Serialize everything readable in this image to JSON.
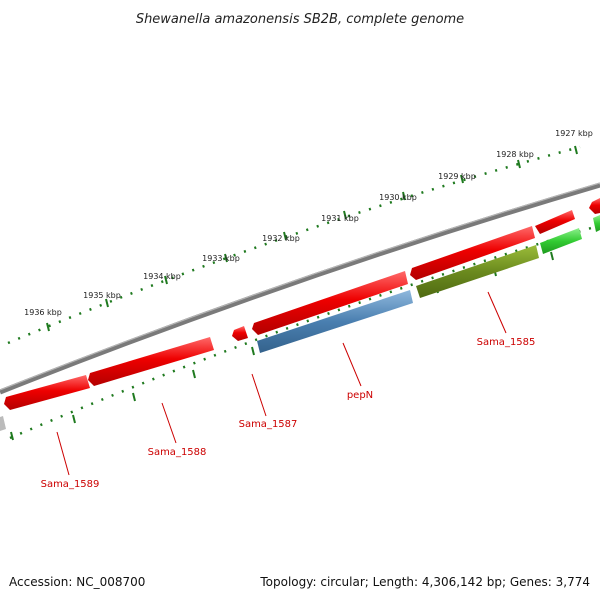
{
  "title": "Shewanella amazonensis SB2B, complete genome",
  "footer": {
    "accession": "Accession: NC_008700",
    "topology": "Topology: circular; Length: 4,306,142 bp; Genes: 3,774"
  },
  "colors": {
    "backbone": "#7a7a7a",
    "tick": "#1f7a1f",
    "gene_red": "#e60000",
    "gene_blue": "#4a7fb0",
    "gene_olive": "#6b8a1e",
    "gene_green": "#33cc33",
    "gene_gray": "#bbbbbb",
    "label_red": "#cc0000"
  },
  "ticks": [
    "1927 kbp",
    "1928 kbp",
    "1929 kbp",
    "1930 kbp",
    "1931 kbp",
    "1932 kbp",
    "1933 kbp",
    "1934 kbp",
    "1935 kbp",
    "1936 kbp"
  ],
  "gene_labels": [
    "Sama_1585",
    "pepN",
    "Sama_1587",
    "Sama_1588",
    "Sama_1589"
  ]
}
